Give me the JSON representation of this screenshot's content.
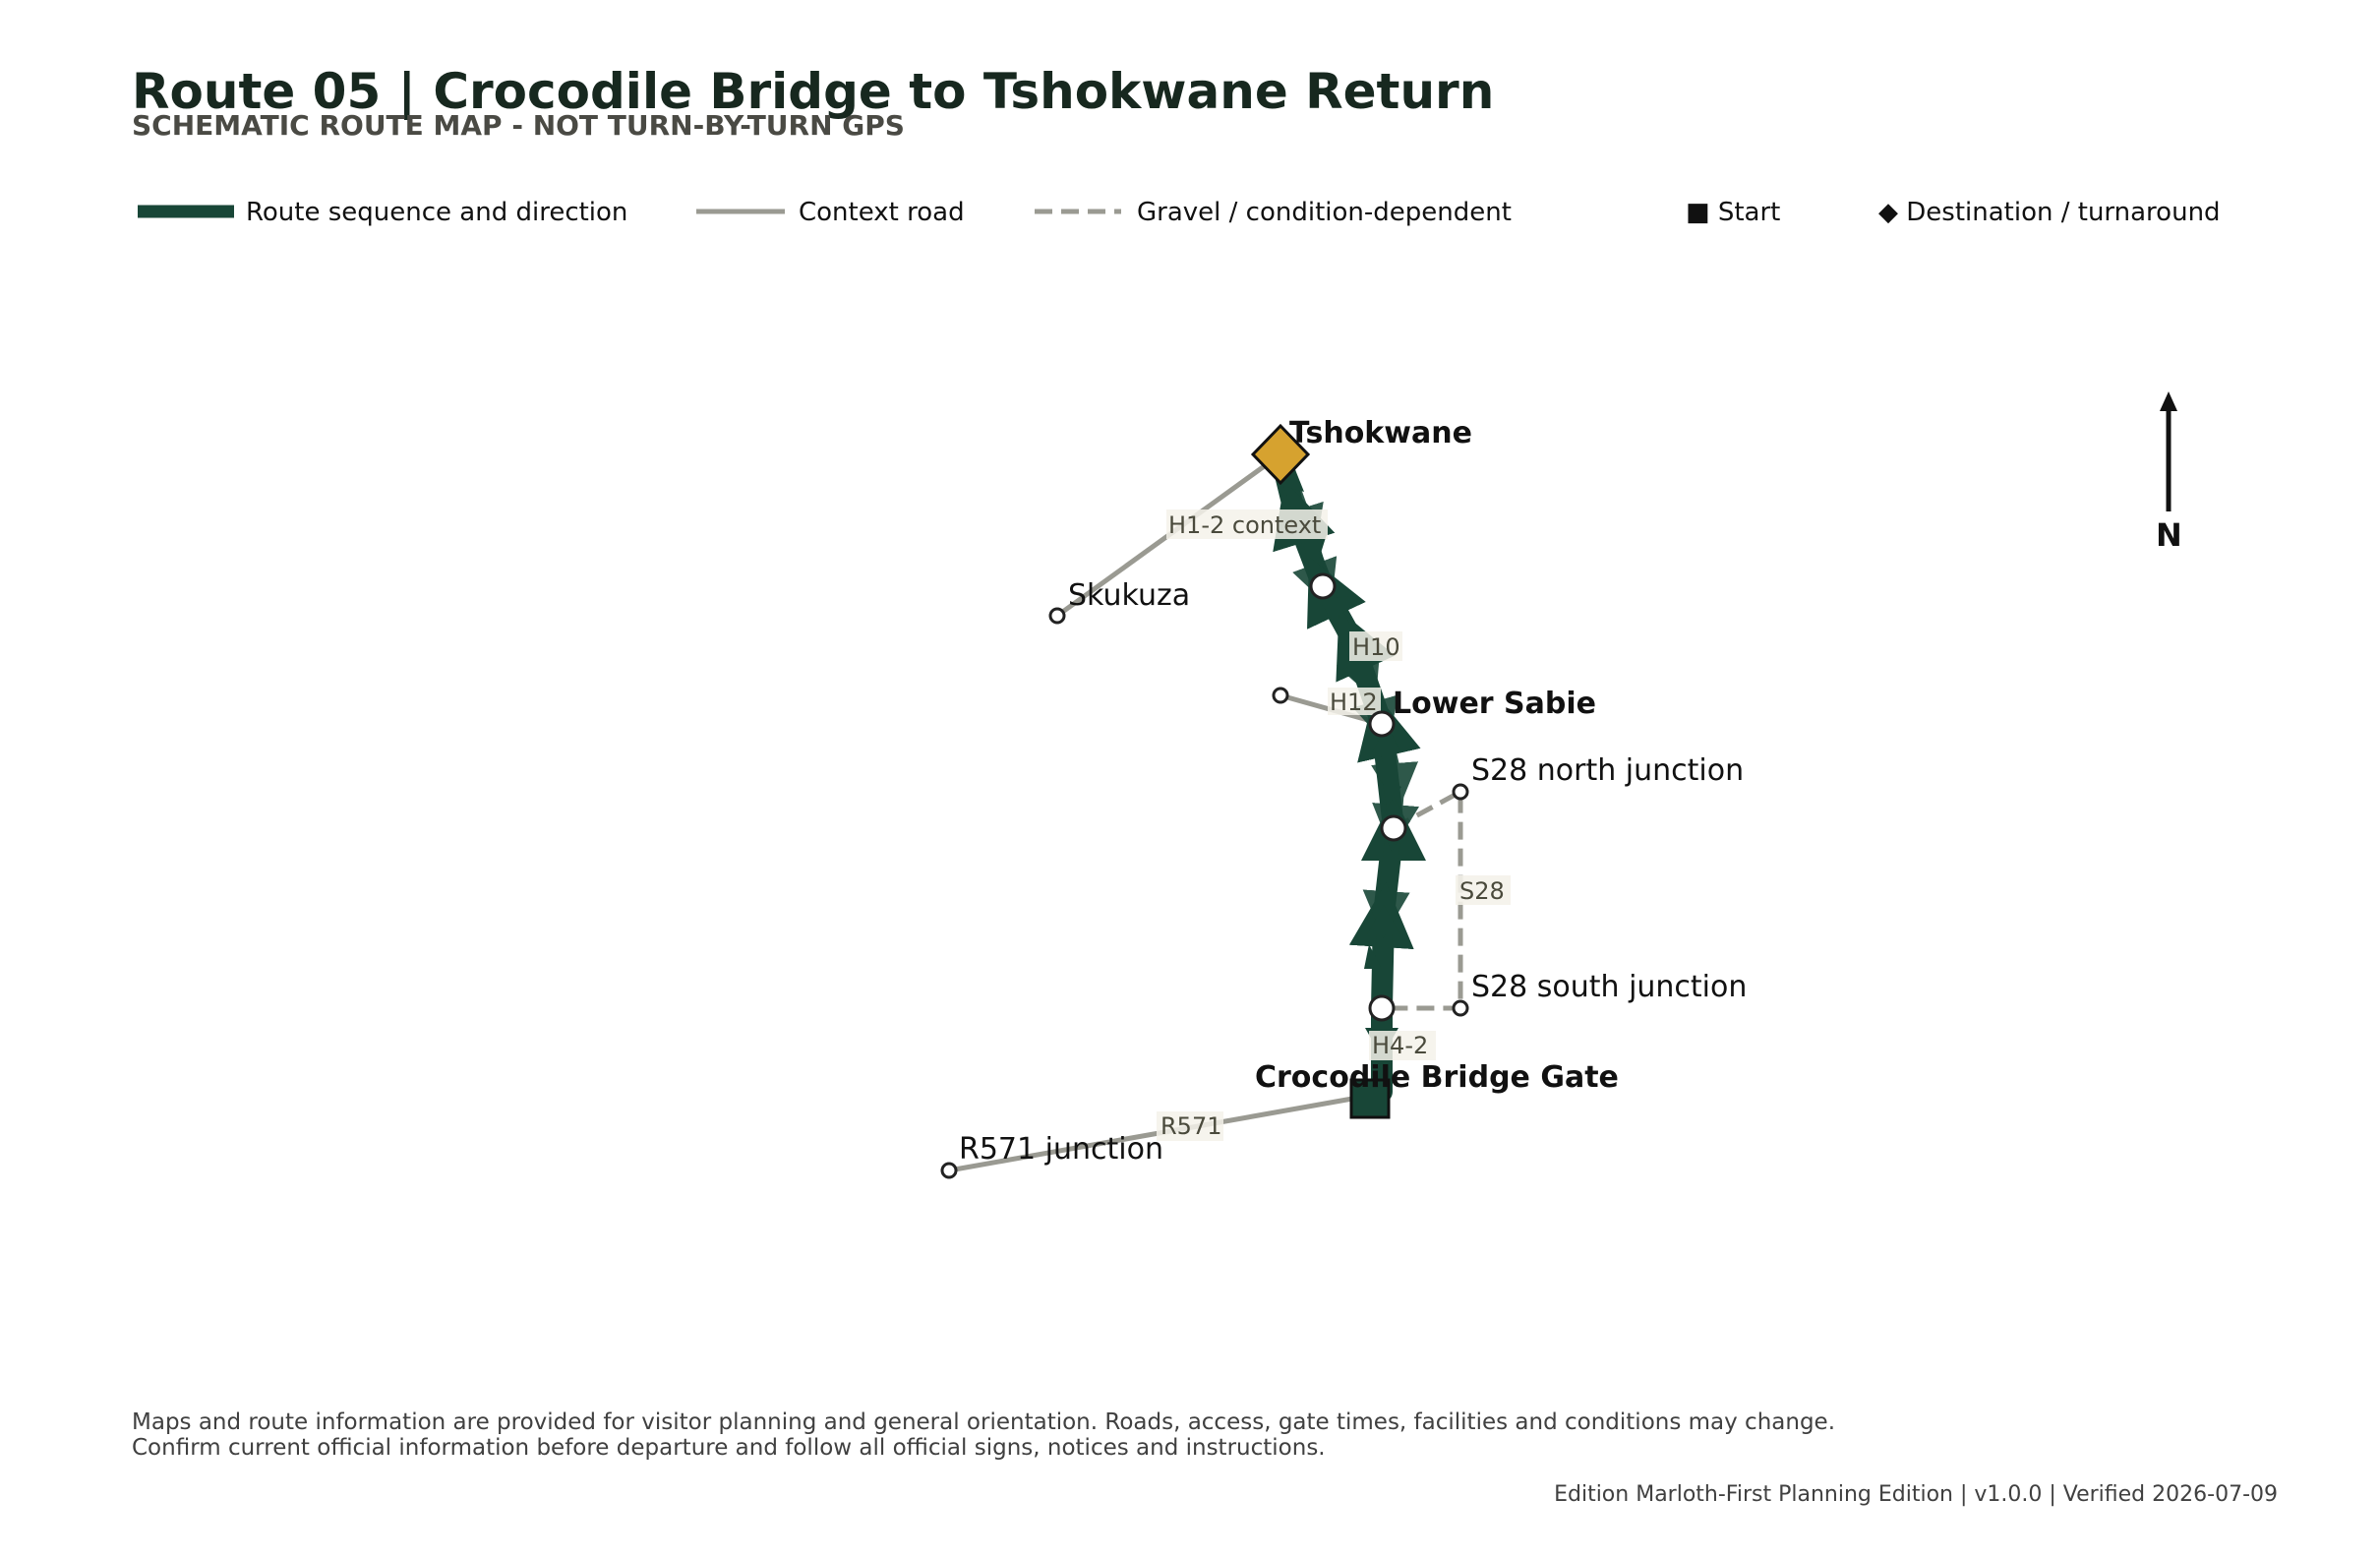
{
  "header": {
    "title": "Route 05 | Crocodile Bridge to Tshokwane Return",
    "subtitle": "SCHEMATIC ROUTE MAP - NOT TURN-BY-TURN GPS"
  },
  "legend": {
    "route": "Route sequence and direction",
    "context": "Context road",
    "gravel": "Gravel / condition-dependent",
    "start": "■ Start",
    "destination": "◆ Destination / turnaround"
  },
  "colors": {
    "route": "#184637",
    "context": "#9a9a92",
    "start": "#184637",
    "destination": "#d6a22f",
    "destination_text": "#7c5c16"
  },
  "places": {
    "tshokwane": "Tshokwane",
    "skukuza": "Skukuza",
    "lower_sabie": "Lower Sabie",
    "s28_north": "S28 north junction",
    "s28_south": "S28 south junction",
    "crocodile_bridge": "Crocodile Bridge Gate",
    "r571_junction": "R571 junction"
  },
  "roads": {
    "h1_2": "H1-2 context",
    "h10": "H10",
    "h12": "H12",
    "s28": "S28",
    "h4_2": "H4-2",
    "r571": "R571"
  },
  "north_label": "N",
  "footer": {
    "disclaimer_line1": "Maps and route information are provided for visitor planning and general orientation. Roads, access, gate times, facilities and conditions may change.",
    "disclaimer_line2": "Confirm current official information before departure and follow all official signs, notices and instructions.",
    "edition": "Edition Marloth-First Planning Edition | v1.0.0 | Verified 2026-07-09"
  }
}
